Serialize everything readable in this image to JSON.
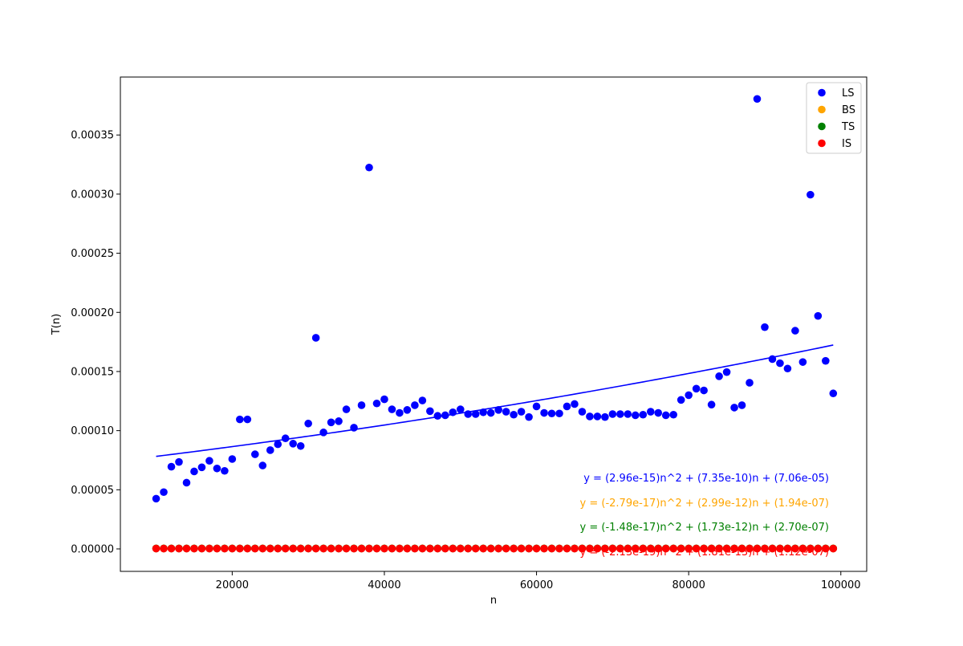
{
  "chart_data": {
    "type": "scatter",
    "title": "",
    "xlabel": "n",
    "ylabel": "T(n)",
    "xlim": [
      5300,
      103400
    ],
    "ylim": [
      -1.9e-05,
      0.000399
    ],
    "x_ticks": [
      20000,
      40000,
      60000,
      80000,
      100000
    ],
    "x_tick_labels": [
      "20000",
      "40000",
      "60000",
      "80000",
      "100000"
    ],
    "y_ticks": [
      0,
      5e-05,
      0.0001,
      0.00015,
      0.0002,
      0.00025,
      0.0003,
      0.00035
    ],
    "y_tick_labels": [
      "0.00000",
      "0.00005",
      "0.00010",
      "0.00015",
      "0.00020",
      "0.00025",
      "0.00030",
      "0.00035"
    ],
    "grid": false,
    "legend_position": "top-right",
    "x": [
      10000,
      11000,
      12000,
      13000,
      14000,
      15000,
      16000,
      17000,
      18000,
      19000,
      20000,
      21000,
      22000,
      23000,
      24000,
      25000,
      26000,
      27000,
      28000,
      29000,
      30000,
      31000,
      32000,
      33000,
      34000,
      35000,
      36000,
      37000,
      38000,
      39000,
      40000,
      41000,
      42000,
      43000,
      44000,
      45000,
      46000,
      47000,
      48000,
      49000,
      50000,
      51000,
      52000,
      53000,
      54000,
      55000,
      56000,
      57000,
      58000,
      59000,
      60000,
      61000,
      62000,
      63000,
      64000,
      65000,
      66000,
      67000,
      68000,
      69000,
      70000,
      71000,
      72000,
      73000,
      74000,
      75000,
      76000,
      77000,
      78000,
      79000,
      80000,
      81000,
      82000,
      83000,
      84000,
      85000,
      86000,
      87000,
      88000,
      89000,
      90000,
      91000,
      92000,
      93000,
      94000,
      95000,
      96000,
      97000,
      98000,
      99000
    ],
    "series": [
      {
        "name": "LS",
        "color": "#0000ff",
        "values": [
          4.25e-05,
          4.8e-05,
          6.95e-05,
          7.35e-05,
          5.6e-05,
          6.55e-05,
          6.9e-05,
          7.45e-05,
          6.8e-05,
          6.6e-05,
          7.6e-05,
          0.0001095,
          0.0001095,
          8e-05,
          7.05e-05,
          8.35e-05,
          8.85e-05,
          9.35e-05,
          8.9e-05,
          8.7e-05,
          0.000106,
          0.0001785,
          9.85e-05,
          0.000107,
          0.000108,
          0.000118,
          0.0001025,
          0.0001215,
          0.0003225,
          0.000123,
          0.0001265,
          0.000118,
          0.000115,
          0.0001175,
          0.0001215,
          0.0001255,
          0.0001165,
          0.0001125,
          0.000113,
          0.0001155,
          0.000118,
          0.000114,
          0.000114,
          0.0001155,
          0.000115,
          0.0001175,
          0.000116,
          0.0001135,
          0.000116,
          0.0001115,
          0.0001205,
          0.000115,
          0.0001145,
          0.0001145,
          0.0001205,
          0.0001225,
          0.000116,
          0.000112,
          0.000112,
          0.0001115,
          0.000114,
          0.000114,
          0.000114,
          0.000113,
          0.0001135,
          0.000116,
          0.000115,
          0.000113,
          0.0001135,
          0.000126,
          0.00013,
          0.0001355,
          0.000134,
          0.000122,
          0.000146,
          0.0001495,
          0.0001195,
          0.0001215,
          0.0001405,
          0.0003805,
          0.0001875,
          0.0001605,
          0.000157,
          0.0001525,
          0.0001845,
          0.000158,
          0.0002995,
          0.000197,
          0.000159,
          0.0001315
        ]
      },
      {
        "name": "BS",
        "color": "#ffa500",
        "constant_value": 4e-07
      },
      {
        "name": "TS",
        "color": "#008000",
        "constant_value": 4e-07
      },
      {
        "name": "IS",
        "color": "#ff0000",
        "constant_value": 3e-07
      }
    ],
    "fits": [
      {
        "series": "LS",
        "color": "#0000ff",
        "coefficients": [
          2.96e-15,
          7.35e-10,
          7.06e-05
        ],
        "label": "y = (2.96e-15)n^2 + (7.35e-10)n + (7.06e-05)"
      },
      {
        "series": "BS",
        "color": "#ffa500",
        "coefficients": [
          -2.79e-17,
          2.99e-12,
          1.94e-07
        ],
        "label": "y = (-2.79e-17)n^2 + (2.99e-12)n + (1.94e-07)"
      },
      {
        "series": "TS",
        "color": "#008000",
        "coefficients": [
          -1.48e-17,
          1.73e-12,
          2.7e-07
        ],
        "label": "y = (-1.48e-17)n^2 + (1.73e-12)n + (2.70e-07)"
      },
      {
        "series": "IS",
        "color": "#ff0000",
        "coefficients": [
          -2.13e-19,
          1.81e-13,
          1.12e-07
        ],
        "label": "y = (-2.13e-19)n^2 + (1.81e-13)n + (1.12e-07)"
      }
    ]
  }
}
